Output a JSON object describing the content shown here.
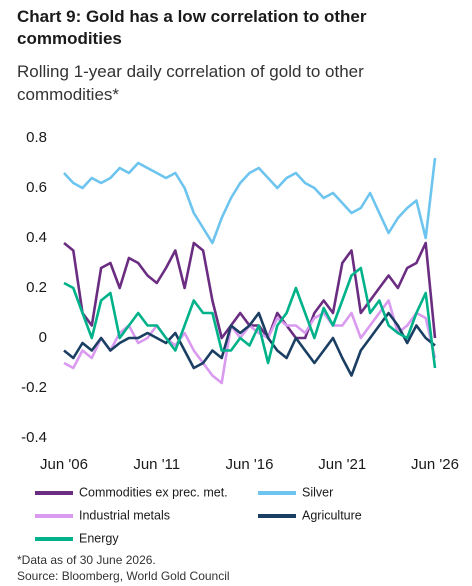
{
  "chart_data": {
    "type": "line",
    "title": "Chart 9: Gold has a low correlation to other commodities",
    "subtitle": "Rolling 1-year daily correlation of gold to other commodities*",
    "note": "*Data as of 30 June 2026.",
    "source": "Source: Bloomberg, World Gold Council",
    "x": [
      "2006-06",
      "2006-12",
      "2007-06",
      "2007-12",
      "2008-06",
      "2008-12",
      "2009-06",
      "2009-12",
      "2010-06",
      "2010-12",
      "2011-06",
      "2011-12",
      "2012-06",
      "2012-12",
      "2013-06",
      "2013-12",
      "2014-06",
      "2014-12",
      "2015-06",
      "2015-12",
      "2016-06",
      "2016-12",
      "2017-06",
      "2017-12",
      "2018-06",
      "2018-12",
      "2019-06",
      "2019-12",
      "2020-06",
      "2020-12",
      "2021-06",
      "2021-12",
      "2022-06",
      "2022-12",
      "2023-06",
      "2023-12",
      "2024-06",
      "2024-12",
      "2025-06",
      "2025-12",
      "2026-06"
    ],
    "xlim": [
      "2006-06",
      "2026-06"
    ],
    "xticks": [
      {
        "value": "2006-06",
        "label": "Jun '06"
      },
      {
        "value": "2011-06",
        "label": "Jun '11"
      },
      {
        "value": "2016-06",
        "label": "Jun '16"
      },
      {
        "value": "2021-06",
        "label": "Jun '21"
      },
      {
        "value": "2026-06",
        "label": "Jun '26"
      }
    ],
    "ylim": [
      -0.4,
      0.8
    ],
    "yticks": [
      0.8,
      0.6,
      0.4,
      0.2,
      0,
      -0.2,
      -0.4
    ],
    "grid": false,
    "series": [
      {
        "name": "Commodities ex prec. met.",
        "color": "#6b2d82",
        "values": [
          0.38,
          0.35,
          0.1,
          0.05,
          0.28,
          0.3,
          0.2,
          0.32,
          0.3,
          0.25,
          0.22,
          0.28,
          0.35,
          0.2,
          0.38,
          0.35,
          0.15,
          0.0,
          0.05,
          0.1,
          0.05,
          0.05,
          0.0,
          0.1,
          0.05,
          0.0,
          0.0,
          0.1,
          0.15,
          0.1,
          0.3,
          0.35,
          0.1,
          0.15,
          0.2,
          0.25,
          0.2,
          0.28,
          0.3,
          0.38,
          0.0
        ]
      },
      {
        "name": "Silver",
        "color": "#6dc4ee",
        "values": [
          0.66,
          0.62,
          0.6,
          0.64,
          0.62,
          0.64,
          0.68,
          0.66,
          0.7,
          0.68,
          0.66,
          0.64,
          0.66,
          0.6,
          0.5,
          0.44,
          0.38,
          0.48,
          0.56,
          0.62,
          0.66,
          0.68,
          0.64,
          0.6,
          0.64,
          0.66,
          0.62,
          0.6,
          0.56,
          0.58,
          0.54,
          0.5,
          0.52,
          0.58,
          0.5,
          0.42,
          0.48,
          0.52,
          0.55,
          0.4,
          0.72
        ]
      },
      {
        "name": "Industrial metals",
        "color": "#d99af0",
        "values": [
          -0.1,
          -0.12,
          -0.05,
          -0.08,
          0.0,
          -0.05,
          0.02,
          0.05,
          -0.02,
          0.0,
          0.05,
          0.0,
          -0.03,
          0.02,
          -0.05,
          -0.1,
          -0.15,
          -0.18,
          0.05,
          0.0,
          0.05,
          0.02,
          0.0,
          0.08,
          0.05,
          0.05,
          0.02,
          0.08,
          0.1,
          0.05,
          0.05,
          0.1,
          0.0,
          0.05,
          0.1,
          0.15,
          0.02,
          0.05,
          0.1,
          0.08,
          -0.08
        ]
      },
      {
        "name": "Agriculture",
        "color": "#1b3f63",
        "values": [
          -0.05,
          -0.08,
          -0.02,
          -0.05,
          0.0,
          -0.05,
          -0.02,
          0.0,
          0.0,
          0.02,
          0.0,
          -0.02,
          0.02,
          -0.05,
          -0.12,
          -0.1,
          -0.05,
          -0.08,
          0.05,
          0.02,
          0.05,
          0.1,
          0.0,
          -0.05,
          -0.08,
          0.0,
          -0.05,
          -0.1,
          -0.05,
          0.0,
          -0.08,
          -0.15,
          -0.05,
          0.0,
          0.05,
          0.1,
          0.05,
          -0.02,
          0.05,
          0.0,
          -0.03
        ]
      },
      {
        "name": "Energy",
        "color": "#00b28a",
        "values": [
          0.22,
          0.2,
          0.1,
          0.0,
          0.15,
          0.18,
          0.0,
          0.05,
          0.1,
          0.05,
          0.05,
          0.0,
          -0.05,
          0.05,
          0.15,
          0.1,
          0.1,
          -0.05,
          -0.05,
          0.0,
          -0.03,
          0.05,
          -0.1,
          0.05,
          0.1,
          0.2,
          0.1,
          0.0,
          0.12,
          0.05,
          0.15,
          0.25,
          0.28,
          0.1,
          0.15,
          0.05,
          0.02,
          0.0,
          0.1,
          0.18,
          -0.12
        ]
      }
    ]
  }
}
